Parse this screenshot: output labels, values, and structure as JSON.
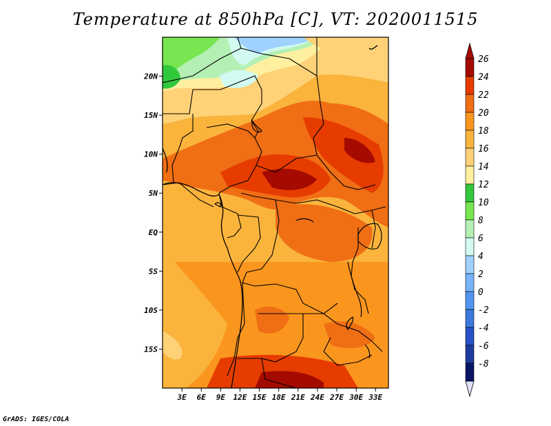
{
  "title": "Temperature at 850hPa [C], VT: 2020011515",
  "credit": "GrADS: IGES/COLA",
  "map": {
    "region": "Central Africa",
    "lon_range": [
      0,
      35
    ],
    "lat_range": [
      -20,
      25
    ],
    "lat_ticks": [
      {
        "value": 20,
        "label": "20N"
      },
      {
        "value": 15,
        "label": "15N"
      },
      {
        "value": 10,
        "label": "10N"
      },
      {
        "value": 5,
        "label": "5N"
      },
      {
        "value": 0,
        "label": "EQ"
      },
      {
        "value": -5,
        "label": "5S"
      },
      {
        "value": -10,
        "label": "10S"
      },
      {
        "value": -15,
        "label": "15S"
      }
    ],
    "lon_ticks": [
      {
        "value": 3,
        "label": "3E"
      },
      {
        "value": 6,
        "label": "6E"
      },
      {
        "value": 9,
        "label": "9E"
      },
      {
        "value": 12,
        "label": "12E"
      },
      {
        "value": 15,
        "label": "15E"
      },
      {
        "value": 18,
        "label": "18E"
      },
      {
        "value": 21,
        "label": "21E"
      },
      {
        "value": 24,
        "label": "24E"
      },
      {
        "value": 27,
        "label": "27E"
      },
      {
        "value": 30,
        "label": "30E"
      },
      {
        "value": 33,
        "label": "33E"
      }
    ]
  },
  "colorbar": {
    "levels": [
      {
        "label": "26",
        "color": "#a50a00"
      },
      {
        "label": "24",
        "color": "#e63c00"
      },
      {
        "label": "22",
        "color": "#f06e14"
      },
      {
        "label": "20",
        "color": "#fa961e"
      },
      {
        "label": "18",
        "color": "#fab43c"
      },
      {
        "label": "16",
        "color": "#ffd278"
      },
      {
        "label": "14",
        "color": "#fff0a0"
      },
      {
        "label": "12",
        "color": "#32c83c"
      },
      {
        "label": "10",
        "color": "#78e650"
      },
      {
        "label": "8",
        "color": "#b4f0b4"
      },
      {
        "label": "6",
        "color": "#d2faf0"
      },
      {
        "label": "4",
        "color": "#a0d2ff"
      },
      {
        "label": "2",
        "color": "#78b4fa"
      },
      {
        "label": "0",
        "color": "#5096f0"
      },
      {
        "label": "-2",
        "color": "#3c78dc"
      },
      {
        "label": "-4",
        "color": "#2850c8"
      },
      {
        "label": "-6",
        "color": "#1e3ca0"
      },
      {
        "label": "-8",
        "color": "#0a1464"
      }
    ],
    "top_color": "#a50a00",
    "bottom_color": "#e0e0f8"
  }
}
